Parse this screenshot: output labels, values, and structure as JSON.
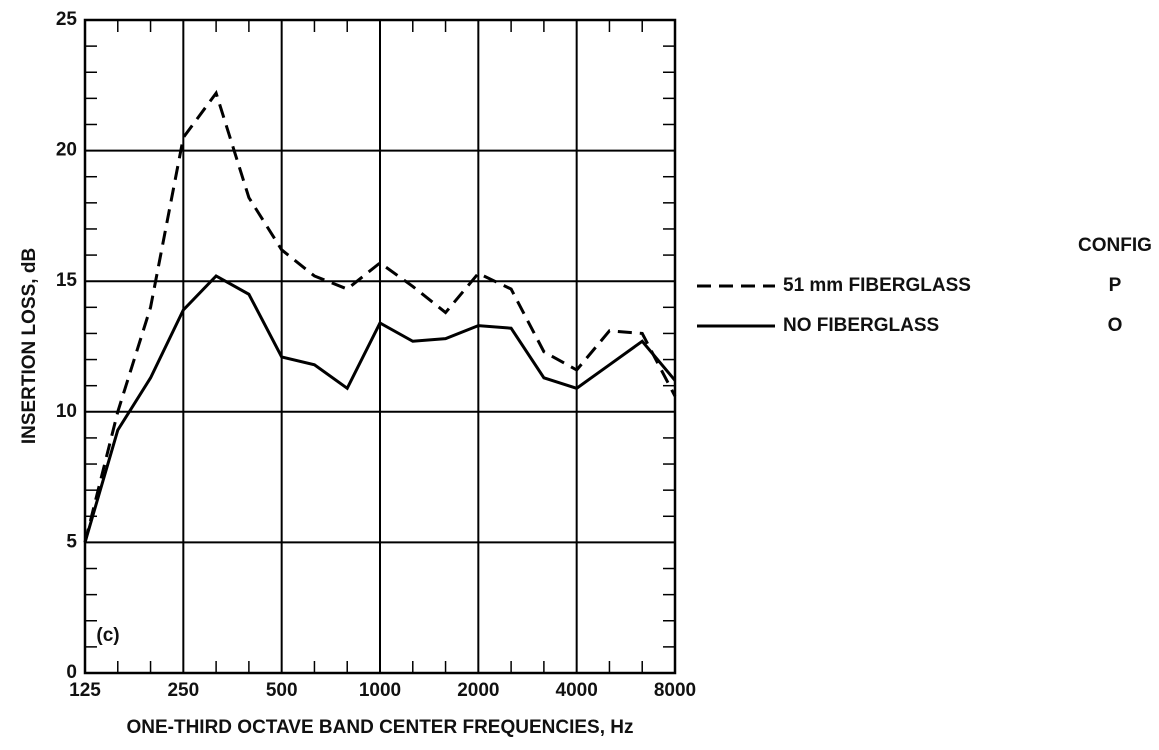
{
  "chart_data": {
    "type": "line",
    "x_label": "ONE-THIRD OCTAVE BAND CENTER FREQUENCIES, Hz",
    "y_label": "INSERTION LOSS, dB",
    "annotation": "(c)",
    "legend_title": "CONFIG",
    "categories": [
      125,
      null,
      null,
      250,
      null,
      null,
      500,
      null,
      null,
      1000,
      null,
      null,
      2000,
      null,
      null,
      4000,
      null,
      null,
      8000
    ],
    "series": [
      {
        "name": "51 mm FIBERGLASS",
        "config": "P",
        "color": "#000000",
        "dash": true,
        "values": [
          5,
          10,
          14,
          20.5,
          22.2,
          18.2,
          16.2,
          15.2,
          14.7,
          15.7,
          14.8,
          13.8,
          15.3,
          14.7,
          12.3,
          11.6,
          13.1,
          13.0,
          10.6
        ]
      },
      {
        "name": "NO FIBERGLASS",
        "config": "O",
        "color": "#000000",
        "dash": false,
        "values": [
          5,
          9.3,
          11.3,
          13.9,
          15.2,
          14.5,
          12.1,
          11.8,
          10.9,
          13.4,
          12.7,
          12.8,
          13.3,
          13.2,
          11.3,
          10.9,
          11.8,
          12.7,
          11.2
        ]
      }
    ],
    "ylim": [
      0,
      25
    ],
    "yticks": [
      0,
      5,
      10,
      15,
      20,
      25
    ],
    "grid": true
  }
}
